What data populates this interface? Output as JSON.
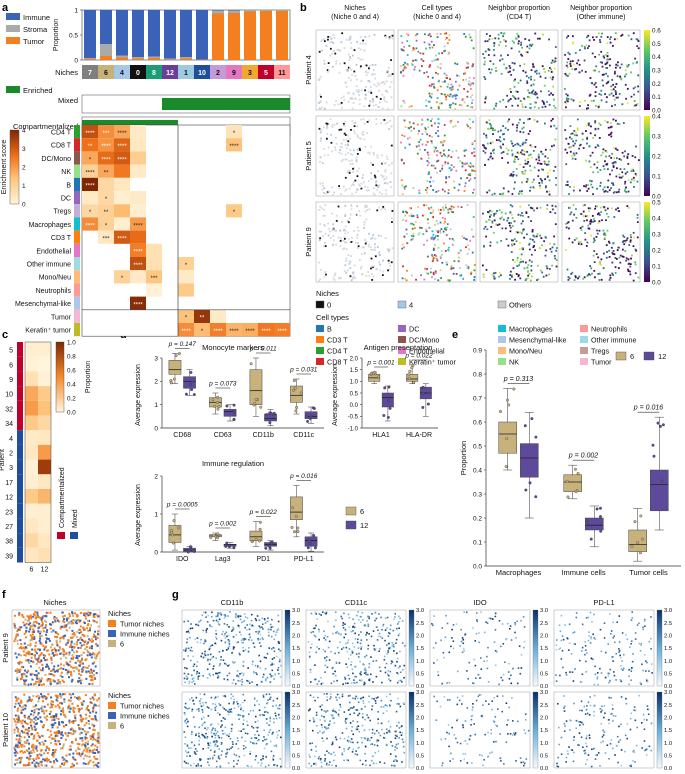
{
  "panel_letters": [
    "a",
    "b",
    "c",
    "d",
    "e",
    "f",
    "g"
  ],
  "colors": {
    "immune": "#3a63b8",
    "stroma": "#aaaaaa",
    "tumor": "#f47f1f",
    "enriched": "#1b8a2a",
    "heat_high": "#7f2704",
    "heat_mid": "#f58b2b",
    "heat_low": "#fff5dd",
    "niche6": "#c8b27c",
    "niche12": "#5e4a9a",
    "blue_map": "#08306b"
  },
  "panel_a": {
    "legend": [
      "Immune",
      "Stroma",
      "Tumor"
    ],
    "ylabel": "Proportion",
    "yticks": [
      "0",
      "0.5",
      "1"
    ],
    "niches_label": "Niches",
    "niches": [
      "7",
      "6",
      "4",
      "0",
      "8",
      "12",
      "1",
      "10",
      "2",
      "9",
      "3",
      "5",
      "11"
    ],
    "niche_colors": [
      "#7f7f7f",
      "#c8b27c",
      "#a6c8e8",
      "#111111",
      "#1b9e77",
      "#6a3d9a",
      "#9ecae1",
      "#1f4e9e",
      "#c49bd8",
      "#e377c2",
      "#f0a830",
      "#c0002a",
      "#ff9896"
    ],
    "immune_frac": [
      0.96,
      0.68,
      0.91,
      0.94,
      0.93,
      0.97,
      0.94,
      0.99,
      0.01,
      0.01,
      0.0,
      0.0,
      0.0
    ],
    "stroma_frac": [
      0.02,
      0.24,
      0.04,
      0.03,
      0.03,
      0.02,
      0.03,
      0.005,
      0.06,
      0.05,
      0.03,
      0.02,
      0.02
    ],
    "enriched_label": "Enriched",
    "rows_top": [
      "Mixed",
      "Compartmentalized"
    ],
    "mixed_enriched": [
      0,
      0,
      0,
      0,
      0,
      1,
      1,
      1,
      1,
      1,
      1,
      1,
      1
    ],
    "comp_enriched": [
      1,
      1,
      1,
      1,
      1,
      1,
      0,
      0,
      0,
      0,
      0,
      0,
      0
    ],
    "colorbar_title": "Enrichment score",
    "colorbar_ticks": [
      "4",
      "3",
      "2",
      "1",
      "0"
    ],
    "cell_types": [
      "CD4 T",
      "CD8 T",
      "DC/Mono",
      "NK",
      "B",
      "DC",
      "Tregs",
      "Macrophages",
      "CD3 T",
      "Endothelial",
      "Other immune",
      "Mono/Neu",
      "Neutrophils",
      "Mesenchymal-like",
      "Tumor",
      "Keratin⁺ tumor"
    ],
    "cell_colors": [
      "#2ca02c",
      "#d62728",
      "#8c564b",
      "#98df8a",
      "#1f77b4",
      "#9467bd",
      "#c5b0d5",
      "#17becf",
      "#ff7f0e",
      "#e377c2",
      "#9edae5",
      "#ffbb78",
      "#ff9896",
      "#aec7e8",
      "#f7b6d2",
      "#bcbd22"
    ],
    "heatmap": [
      [
        3.2,
        2.2,
        1.8,
        0.3,
        0,
        0,
        0,
        0,
        0,
        0.5,
        0,
        0,
        0
      ],
      [
        2.6,
        2.1,
        2.8,
        0.4,
        0,
        0,
        0,
        0,
        0,
        1.4,
        0,
        0,
        0
      ],
      [
        1.8,
        2.7,
        3.0,
        1.1,
        0,
        0,
        0,
        0,
        0,
        0,
        0,
        0,
        0
      ],
      [
        1.0,
        1.8,
        2.5,
        0.3,
        0,
        0,
        0,
        0,
        0,
        0,
        0,
        0,
        0
      ],
      [
        4.0,
        0.8,
        0.4,
        0,
        0,
        0,
        0,
        0,
        0,
        0,
        0,
        0,
        0
      ],
      [
        0.3,
        0.8,
        0.2,
        0.3,
        0,
        0,
        0,
        0,
        0,
        0,
        0,
        0,
        0
      ],
      [
        0.8,
        1.0,
        1.5,
        0.2,
        0,
        0,
        0,
        0,
        0,
        1.2,
        0,
        0,
        0
      ],
      [
        2.2,
        1.0,
        0.2,
        2.0,
        0,
        0,
        0,
        0,
        0,
        0,
        0,
        0,
        0
      ],
      [
        0,
        0.4,
        3.0,
        2.7,
        0,
        0,
        0,
        0,
        0,
        0,
        0,
        0,
        0
      ],
      [
        0,
        0,
        0,
        2.4,
        0.6,
        0,
        0,
        0,
        0,
        0,
        0,
        0,
        0
      ],
      [
        0,
        0,
        0,
        3.2,
        0.6,
        0,
        1.0,
        0,
        0,
        0,
        0,
        0,
        0
      ],
      [
        0,
        0,
        1.0,
        0.3,
        1.3,
        0,
        0.3,
        0,
        0,
        0,
        0,
        0,
        0
      ],
      [
        0,
        0,
        0,
        0,
        0.1,
        0,
        1.2,
        0,
        0,
        0,
        0,
        0,
        0
      ],
      [
        0,
        0,
        0,
        3.9,
        0,
        0,
        0,
        0,
        0,
        0,
        0,
        0,
        0
      ],
      [
        0,
        0,
        0,
        0,
        0,
        0,
        1.4,
        3.7,
        0.3,
        0,
        0,
        0,
        0
      ],
      [
        0,
        0,
        0,
        0,
        0,
        0,
        2.2,
        1.5,
        2.4,
        1.6,
        1.7,
        2.5,
        2.4
      ]
    ],
    "stars": [
      [
        "****",
        "***",
        "****",
        "",
        "",
        "",
        "",
        "",
        "",
        "*",
        "",
        "",
        ""
      ],
      [
        "**",
        "****",
        "****",
        "",
        "",
        "",
        "",
        "",
        "",
        "****",
        "",
        "",
        ""
      ],
      [
        "*",
        "****",
        "****",
        "",
        "",
        "",
        "",
        "",
        "",
        "",
        "",
        "",
        ""
      ],
      [
        "****",
        "**",
        "",
        "",
        "",
        "",
        "",
        "",
        "",
        "",
        "",
        "",
        ""
      ],
      [
        "****",
        "",
        "",
        "",
        "",
        "",
        "",
        "",
        "",
        "",
        "",
        "",
        ""
      ],
      [
        "",
        "*",
        "",
        "",
        "",
        "",
        "",
        "",
        "",
        "",
        "",
        "",
        ""
      ],
      [
        "*",
        "**",
        "",
        "",
        "",
        "",
        "",
        "",
        "",
        "*",
        "",
        "",
        ""
      ],
      [
        "****",
        "*",
        "",
        "****",
        "",
        "",
        "",
        "",
        "",
        "",
        "",
        "",
        ""
      ],
      [
        "",
        "***",
        "****",
        "",
        "",
        "",
        "",
        "",
        "",
        "",
        "",
        "",
        ""
      ],
      [
        "",
        "",
        "",
        "****",
        "",
        "",
        "",
        "",
        "",
        "",
        "",
        "",
        ""
      ],
      [
        "",
        "",
        "",
        "****",
        "",
        "",
        "*",
        "",
        "",
        "",
        "",
        "",
        ""
      ],
      [
        "",
        "",
        "*",
        "",
        "***",
        "",
        "",
        "",
        "",
        "",
        "",
        "",
        ""
      ],
      [
        "",
        "",
        "",
        "",
        "",
        "",
        "",
        "",
        "",
        "",
        "",
        "",
        ""
      ],
      [
        "",
        "",
        "",
        "****",
        "",
        "",
        "",
        "",
        "",
        "",
        "",
        "",
        ""
      ],
      [
        "",
        "",
        "",
        "",
        "",
        "",
        "*",
        "**",
        "",
        "",
        "",
        "",
        ""
      ],
      [
        "",
        "",
        "",
        "",
        "",
        "",
        "****",
        "*",
        "****",
        "****",
        "****",
        "****",
        "****"
      ]
    ]
  },
  "panel_b": {
    "col_titles": [
      "Niches\n(Niche 0 and 4)",
      "Cell types\n(Niche 0 and 4)",
      "Neighbor proportion\n(CD4 T)",
      "Neighbor proportion\n(Other immune)"
    ],
    "patients": [
      "Patient 4",
      "Patient 5",
      "Patient 9"
    ],
    "cbar_ticks": [
      [
        "0.0",
        "0.1",
        "0.2",
        "0.3",
        "0.4",
        "0.5",
        "0.6"
      ],
      [
        "0.0",
        "0.1",
        "0.2",
        "0.3",
        "0.4"
      ],
      [
        "0.0",
        "0.1",
        "0.2",
        "0.3",
        "0.4",
        "0.5"
      ]
    ],
    "niches_legend_title": "Niches",
    "niches_legend": [
      {
        "label": "0",
        "color": "#111111"
      },
      {
        "label": "4",
        "color": "#a6c8e8"
      },
      {
        "label": "Others",
        "color": "#cccccc"
      }
    ],
    "celltypes_legend_title": "Cell types",
    "celltypes_legend": [
      {
        "label": "B",
        "color": "#1f77b4"
      },
      {
        "label": "DC",
        "color": "#9467bd"
      },
      {
        "label": "Macrophages",
        "color": "#17becf"
      },
      {
        "label": "Neutrophils",
        "color": "#ff9896"
      },
      {
        "label": "CD3 T",
        "color": "#ff7f0e"
      },
      {
        "label": "DC/Mono",
        "color": "#8c564b"
      },
      {
        "label": "Mesenchymal-like",
        "color": "#aec7e8"
      },
      {
        "label": "Other immune",
        "color": "#9edae5"
      },
      {
        "label": "CD4 T",
        "color": "#2ca02c"
      },
      {
        "label": "Endothelial",
        "color": "#e377c2"
      },
      {
        "label": "Mono/Neu",
        "color": "#ffbb78"
      },
      {
        "label": "Tregs",
        "color": "#c49c94"
      },
      {
        "label": "CD8 T",
        "color": "#d62728"
      },
      {
        "label": "Keratin⁺ tumor",
        "color": "#bcbd22"
      },
      {
        "label": "NK",
        "color": "#98df8a"
      },
      {
        "label": "Tumor",
        "color": "#f7b6d2"
      }
    ]
  },
  "panel_c": {
    "patients": [
      "5",
      "6",
      "9",
      "10",
      "32",
      "34",
      "4",
      "2",
      "3",
      "17",
      "12",
      "23",
      "27",
      "38",
      "39"
    ],
    "ylabel": "Patient",
    "x_labels": [
      "6",
      "12"
    ],
    "compartment": [
      "Compartmentalized",
      "Mixed"
    ],
    "compartment_colors": [
      "#c0002a",
      "#1f4e9e"
    ],
    "patient_group": [
      0,
      0,
      0,
      0,
      0,
      0,
      1,
      1,
      1,
      1,
      1,
      1,
      1,
      1,
      1
    ],
    "values": [
      [
        0.05,
        0.05
      ],
      [
        0.02,
        0.0
      ],
      [
        0.15,
        0.03
      ],
      [
        0.45,
        0.3
      ],
      [
        0.5,
        0.35
      ],
      [
        0.3,
        0.2
      ],
      [
        0.08,
        0.1
      ],
      [
        0.1,
        0.5
      ],
      [
        0.03,
        0.9
      ],
      [
        0.05,
        0.1
      ],
      [
        0.3,
        0.4
      ],
      [
        0.05,
        0.05
      ],
      [
        0.1,
        0.05
      ],
      [
        0.2,
        0.1
      ],
      [
        0.1,
        0.15
      ]
    ],
    "cbar_title": "Proportion",
    "cbar_ticks": [
      "1.0",
      "0.8",
      "0.6",
      "0.4",
      "0.2",
      "0.0"
    ]
  },
  "panel_d": {
    "monocyte_title": "Monocyte markers",
    "antigen_title": "Antigen presentation",
    "immune_title": "Immune regulation",
    "ylabel": "Average expression",
    "legend": [
      "6",
      "12"
    ],
    "chart_data": [
      {
        "type": "box",
        "title": "Monocyte markers",
        "categories": [
          "CD68",
          "CD63",
          "CD11b",
          "CD11c"
        ],
        "ylim": [
          0,
          3
        ],
        "yticks": [
          "0",
          "1",
          "2",
          "3"
        ],
        "p": [
          "p = 0.147",
          "p = 0.073",
          "p = 0.011",
          "p = 0.031"
        ],
        "g6": [
          [
            1.9,
            2.3,
            2.5,
            2.9,
            3.2
          ],
          [
            0.6,
            0.9,
            1.1,
            1.3,
            1.5
          ],
          [
            0.5,
            1.0,
            1.6,
            2.5,
            3.0
          ],
          [
            0.6,
            1.1,
            1.4,
            1.8,
            2.1
          ]
        ],
        "g12": [
          [
            1.4,
            1.7,
            2.0,
            2.2,
            2.5
          ],
          [
            0.3,
            0.5,
            0.7,
            0.8,
            1.0
          ],
          [
            0.1,
            0.3,
            0.4,
            0.6,
            0.8
          ],
          [
            0.2,
            0.4,
            0.5,
            0.7,
            0.9
          ]
        ]
      },
      {
        "type": "box",
        "title": "Antigen presentation",
        "categories": [
          "HLA1",
          "HLA-DR"
        ],
        "ylim": [
          -1.0,
          2.0
        ],
        "yticks": [
          "-1.0",
          "-0.5",
          "0.0",
          "0.5",
          "1.0",
          "1.5",
          "2.0"
        ],
        "p": [
          "p = 0.001",
          "p = 0.022"
        ],
        "g6": [
          [
            0.9,
            1.0,
            1.15,
            1.3,
            1.4
          ],
          [
            0.9,
            1.0,
            1.1,
            1.3,
            1.7
          ]
        ],
        "g12": [
          [
            -0.7,
            -0.1,
            0.3,
            0.5,
            0.8
          ],
          [
            -0.5,
            0.25,
            0.5,
            0.75,
            0.9
          ]
        ]
      },
      {
        "type": "box",
        "title": "Immune regulation",
        "categories": [
          "IDO",
          "Lag3",
          "PD1",
          "PD-L1"
        ],
        "ylim": [
          0,
          2
        ],
        "yticks": [
          "0",
          "1",
          "2"
        ],
        "p": [
          "p = 0.0005",
          "p = 0.002",
          "p = 0.022",
          "p = 0.016"
        ],
        "g6": [
          [
            0.05,
            0.25,
            0.45,
            0.7,
            1.0
          ],
          [
            0.3,
            0.4,
            0.45,
            0.45,
            0.5
          ],
          [
            0.15,
            0.3,
            0.4,
            0.55,
            0.8
          ],
          [
            0.4,
            0.85,
            1.05,
            1.45,
            1.75
          ]
        ],
        "g12": [
          [
            0.0,
            0.02,
            0.05,
            0.1,
            0.15
          ],
          [
            0.1,
            0.15,
            0.2,
            0.2,
            0.25
          ],
          [
            0.05,
            0.15,
            0.2,
            0.25,
            0.3
          ],
          [
            0.02,
            0.15,
            0.3,
            0.4,
            0.5
          ]
        ]
      }
    ]
  },
  "panel_e": {
    "ylabel": "Proportion",
    "legend": [
      "6",
      "12"
    ],
    "chart_data": {
      "type": "box",
      "categories": [
        "Macrophages",
        "Immune cells",
        "Tumor cells"
      ],
      "ylim": [
        0,
        0.9
      ],
      "yticks": [
        "0.0",
        "0.1",
        "0.2",
        "0.3",
        "0.4",
        "0.5",
        "0.6",
        "0.7",
        "0.8",
        "0.9"
      ],
      "p": [
        "p = 0.313",
        "p = 0.002",
        "p = 0.016"
      ],
      "g6": [
        [
          0.4,
          0.47,
          0.55,
          0.6,
          0.74
        ],
        [
          0.28,
          0.31,
          0.35,
          0.38,
          0.42
        ],
        [
          0.02,
          0.06,
          0.09,
          0.15,
          0.24
        ]
      ],
      "g12": [
        [
          0.2,
          0.37,
          0.45,
          0.51,
          0.64
        ],
        [
          0.08,
          0.15,
          0.17,
          0.2,
          0.25
        ],
        [
          0.15,
          0.23,
          0.34,
          0.4,
          0.62
        ]
      ]
    }
  },
  "panel_f": {
    "title": "Niches",
    "patients": [
      "Patient 9",
      "Patient 10"
    ],
    "legend_title": "Niches",
    "legend": [
      {
        "label": "Tumor niches",
        "color": "#f47f1f"
      },
      {
        "label": "Immune niches",
        "color": "#3a63b8"
      },
      {
        "label": "6",
        "color": "#c8b27c"
      }
    ]
  },
  "panel_g": {
    "markers": [
      "CD11b",
      "CD11c",
      "IDO",
      "PD-L1"
    ],
    "cbar_ticks": [
      "0.0",
      "0.5",
      "1.0",
      "1.5",
      "2.0",
      "2.5",
      "3.0"
    ]
  }
}
